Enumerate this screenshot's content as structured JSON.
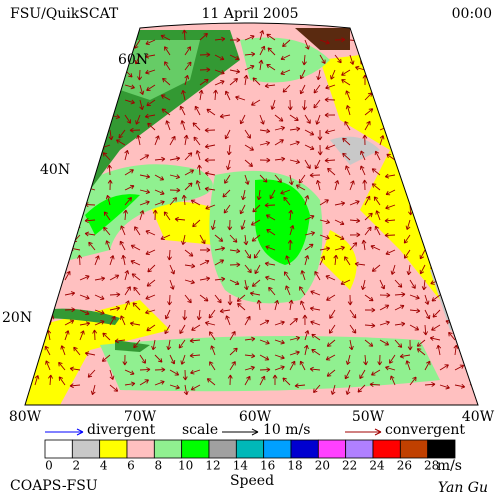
{
  "header": {
    "title": "FSU/QuikSCAT",
    "date": "11 April 2005",
    "time": "00:00"
  },
  "map": {
    "lat_labels": [
      "60N",
      "40N",
      "20N"
    ],
    "lon_labels": [
      "80W",
      "70W",
      "60W",
      "50W",
      "40W"
    ]
  },
  "legend": {
    "divergent": "divergent",
    "scale": "scale",
    "scale_value": "10 m/s",
    "convergent": "convergent",
    "divergent_color": "#0000ff",
    "convergent_color": "#a00000"
  },
  "colorbar": {
    "colors": [
      "#ffffff",
      "#c8c8c8",
      "#ffff00",
      "#ffc0c0",
      "#90f090",
      "#00ff00",
      "#a0a0a0",
      "#00b8b8",
      "#00a0ff",
      "#0000d0",
      "#ff40ff",
      "#b080ff",
      "#ff0000",
      "#c04000",
      "#000000"
    ],
    "labels": [
      0,
      2,
      4,
      6,
      8,
      10,
      12,
      14,
      16,
      18,
      20,
      22,
      24,
      26,
      28
    ],
    "unit": "m/s",
    "title": "Speed"
  },
  "footer": {
    "left": "COAPS-FSU",
    "right": "Yan Gu"
  }
}
